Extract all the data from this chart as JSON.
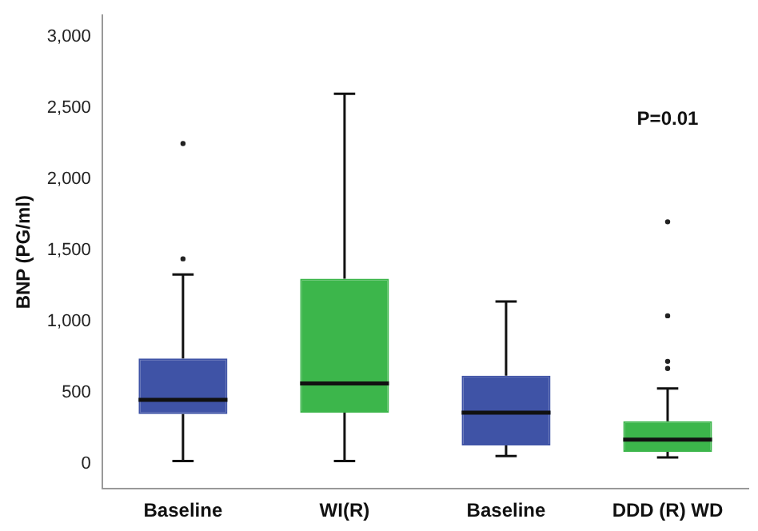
{
  "chart_data": {
    "type": "box",
    "ylabel": "BNP (PG/ml)",
    "categories": [
      "Baseline",
      "WI(R)",
      "Baseline",
      "DDD (R) WD"
    ],
    "colors": [
      "#3f53a6",
      "#3cb64b",
      "#3f53a6",
      "#3cb64b"
    ],
    "boxes": [
      {
        "low": 20,
        "q1": 350,
        "median": 450,
        "q3": 740,
        "high": 1330,
        "outliers": [
          1440,
          2250
        ]
      },
      {
        "low": 20,
        "q1": 360,
        "median": 565,
        "q3": 1300,
        "high": 2600
      },
      {
        "low": 55,
        "q1": 130,
        "median": 360,
        "q3": 620,
        "high": 1140
      },
      {
        "low": 45,
        "q1": 85,
        "median": 170,
        "q3": 300,
        "high": 530,
        "outliers": [
          670,
          720,
          1040,
          1700
        ]
      }
    ],
    "ylim": [
      -175,
      3150
    ],
    "yticks": [
      0,
      {
        "value": 500,
        "label": "500"
      },
      {
        "value": 1000,
        "label": "1,000"
      },
      {
        "value": 1500,
        "label": "1,500"
      },
      {
        "value": 2000,
        "label": "2,000"
      },
      {
        "value": 2500,
        "label": "2,500"
      },
      {
        "value": 3000,
        "label": "3,000"
      }
    ],
    "grid": false,
    "annotations": [
      "P=0.01"
    ]
  }
}
